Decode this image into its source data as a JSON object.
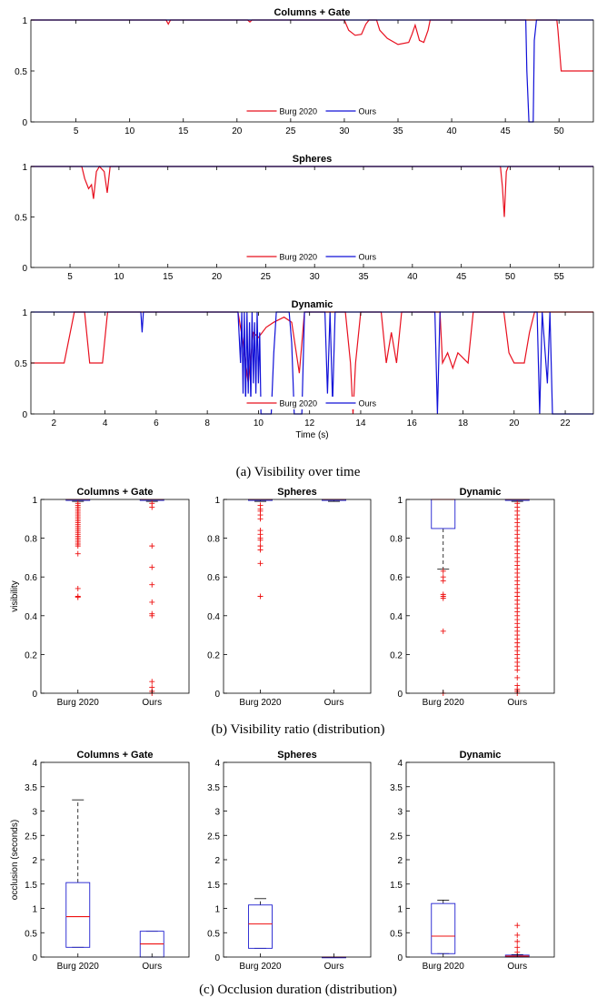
{
  "colors": {
    "burg": "#e8101f",
    "ours": "#1010d8",
    "box": "#1f1fd0",
    "median": "#ee1111",
    "outlier": "#ee1111",
    "whisker": "#000000"
  },
  "legend": {
    "burg": "Burg 2020",
    "ours": "Ours"
  },
  "captions": {
    "a": "(a) Visibility over time",
    "b": "(b) Visibility ratio (distribution)",
    "c": "(c) Occlusion duration (distribution)"
  },
  "chart_data": [
    {
      "id": "a1",
      "type": "line",
      "title": "Columns + Gate",
      "xlabel": "",
      "ylabel": "",
      "xlim": [
        0.8,
        53.2
      ],
      "ylim": [
        0,
        1
      ],
      "xticks": [
        5,
        10,
        15,
        20,
        25,
        30,
        35,
        40,
        45,
        50
      ],
      "yticks": [
        0,
        0.5,
        1
      ],
      "series": [
        {
          "name": "Burg 2020",
          "color": "#e8101f",
          "points": [
            [
              0.8,
              1
            ],
            [
              13.4,
              1
            ],
            [
              13.6,
              0.96
            ],
            [
              13.8,
              1
            ],
            [
              21,
              1
            ],
            [
              21.2,
              0.98
            ],
            [
              21.4,
              1
            ],
            [
              30,
              1
            ],
            [
              30.4,
              0.9
            ],
            [
              31,
              0.85
            ],
            [
              31.6,
              0.86
            ],
            [
              32,
              0.96
            ],
            [
              32.3,
              1
            ],
            [
              33,
              1
            ],
            [
              33.3,
              0.9
            ],
            [
              34,
              0.82
            ],
            [
              35,
              0.76
            ],
            [
              36,
              0.78
            ],
            [
              36.3,
              0.86
            ],
            [
              36.6,
              0.95
            ],
            [
              37,
              0.8
            ],
            [
              37.4,
              0.78
            ],
            [
              37.8,
              0.9
            ],
            [
              38,
              1
            ],
            [
              49.8,
              1
            ],
            [
              49.9,
              0.9
            ],
            [
              50.2,
              0.5
            ],
            [
              53.2,
              0.5
            ]
          ]
        },
        {
          "name": "Ours",
          "color": "#1010d8",
          "points": [
            [
              0.8,
              1
            ],
            [
              46.9,
              1
            ],
            [
              47,
              0.5
            ],
            [
              47.2,
              0
            ],
            [
              47.6,
              0
            ],
            [
              47.7,
              0.8
            ],
            [
              47.9,
              1
            ],
            [
              53.2,
              1
            ]
          ]
        }
      ]
    },
    {
      "id": "a2",
      "type": "line",
      "title": "Spheres",
      "xlabel": "",
      "ylabel": "",
      "xlim": [
        1,
        58.5
      ],
      "ylim": [
        0,
        1
      ],
      "xticks": [
        5,
        10,
        15,
        20,
        25,
        30,
        35,
        40,
        45,
        50,
        55
      ],
      "yticks": [
        0,
        0.5,
        1
      ],
      "series": [
        {
          "name": "Burg 2020",
          "color": "#e8101f",
          "points": [
            [
              1,
              1
            ],
            [
              6.2,
              1
            ],
            [
              6.5,
              0.88
            ],
            [
              6.9,
              0.78
            ],
            [
              7.2,
              0.82
            ],
            [
              7.4,
              0.68
            ],
            [
              7.7,
              0.95
            ],
            [
              8,
              1
            ],
            [
              8.5,
              0.95
            ],
            [
              8.8,
              0.74
            ],
            [
              9.1,
              1
            ],
            [
              49,
              1
            ],
            [
              49.2,
              0.8
            ],
            [
              49.4,
              0.5
            ],
            [
              49.6,
              0.95
            ],
            [
              49.8,
              1
            ],
            [
              58.5,
              1
            ]
          ]
        },
        {
          "name": "Ours",
          "color": "#1010d8",
          "points": [
            [
              1,
              1
            ],
            [
              58.5,
              1
            ]
          ]
        }
      ]
    },
    {
      "id": "a3",
      "type": "line",
      "title": "Dynamic",
      "xlabel": "Time (s)",
      "ylabel": "",
      "xlim": [
        1.1,
        23.1
      ],
      "ylim": [
        0,
        1
      ],
      "xticks": [
        2,
        4,
        6,
        8,
        10,
        12,
        14,
        16,
        18,
        20,
        22
      ],
      "yticks": [
        0,
        0.5,
        1
      ],
      "series": [
        {
          "name": "Burg 2020",
          "color": "#e8101f",
          "points": [
            [
              1.1,
              0.5
            ],
            [
              2.4,
              0.5
            ],
            [
              2.6,
              0.75
            ],
            [
              2.8,
              1
            ],
            [
              3.2,
              1
            ],
            [
              3.4,
              0.5
            ],
            [
              3.9,
              0.5
            ],
            [
              4.1,
              1
            ],
            [
              9.2,
              1
            ],
            [
              9.4,
              0.7
            ],
            [
              9.6,
              0.3
            ],
            [
              9.8,
              0.8
            ],
            [
              10,
              0.75
            ],
            [
              10.3,
              0.85
            ],
            [
              10.6,
              0.9
            ],
            [
              11,
              0.95
            ],
            [
              11.3,
              0.9
            ],
            [
              11.6,
              0.4
            ],
            [
              11.8,
              1
            ],
            [
              13.4,
              1
            ],
            [
              13.6,
              0.5
            ],
            [
              13.7,
              0
            ],
            [
              13.8,
              0.5
            ],
            [
              14,
              1
            ],
            [
              14.8,
              1
            ],
            [
              15,
              0.5
            ],
            [
              15.2,
              0.8
            ],
            [
              15.4,
              0.5
            ],
            [
              15.6,
              1
            ],
            [
              17.1,
              1
            ],
            [
              17.2,
              0.5
            ],
            [
              17.4,
              0.6
            ],
            [
              17.6,
              0.45
            ],
            [
              17.8,
              0.6
            ],
            [
              18,
              0.55
            ],
            [
              18.2,
              0.5
            ],
            [
              18.4,
              1
            ],
            [
              19.6,
              1
            ],
            [
              19.8,
              0.6
            ],
            [
              20,
              0.5
            ],
            [
              20.4,
              0.5
            ],
            [
              20.6,
              0.8
            ],
            [
              20.8,
              1
            ],
            [
              23.1,
              1
            ]
          ]
        },
        {
          "name": "Ours",
          "color": "#1010d8",
          "points": [
            [
              1.1,
              1
            ],
            [
              5.4,
              1
            ],
            [
              5.45,
              0.8
            ],
            [
              5.5,
              1
            ],
            [
              9.2,
              1
            ],
            [
              9.3,
              0.5
            ],
            [
              9.35,
              1
            ],
            [
              9.4,
              0.2
            ],
            [
              9.45,
              1
            ],
            [
              9.5,
              0.1
            ],
            [
              9.55,
              1
            ],
            [
              9.6,
              0.2
            ],
            [
              9.65,
              0.9
            ],
            [
              9.7,
              0.1
            ],
            [
              9.75,
              1
            ],
            [
              9.8,
              0.3
            ],
            [
              9.85,
              0.9
            ],
            [
              9.9,
              0.2
            ],
            [
              9.95,
              1
            ],
            [
              10,
              0.3
            ],
            [
              10.05,
              0.8
            ],
            [
              10.1,
              0
            ],
            [
              10.5,
              0
            ],
            [
              10.6,
              0.6
            ],
            [
              10.7,
              1
            ],
            [
              11.2,
              1
            ],
            [
              11.3,
              0.7
            ],
            [
              11.4,
              0
            ],
            [
              11.7,
              0
            ],
            [
              11.8,
              1
            ],
            [
              12.6,
              1
            ],
            [
              12.7,
              0.2
            ],
            [
              12.8,
              1
            ],
            [
              12.9,
              0.1
            ],
            [
              13,
              1
            ],
            [
              16.9,
              1
            ],
            [
              17,
              0
            ],
            [
              17.1,
              1
            ],
            [
              20.9,
              1
            ],
            [
              21,
              0
            ],
            [
              21.1,
              1
            ],
            [
              21.3,
              0.3
            ],
            [
              21.4,
              1
            ],
            [
              21.5,
              0
            ],
            [
              23.1,
              0
            ]
          ]
        }
      ]
    },
    {
      "id": "b1",
      "type": "box",
      "title": "Columns + Gate",
      "ylabel": "visibility",
      "categories": [
        "Burg 2020",
        "Ours"
      ],
      "ylim": [
        0,
        1
      ],
      "yticks": [
        0,
        0.2,
        0.4,
        0.6,
        0.8,
        1
      ],
      "boxes": [
        {
          "q1": 0.995,
          "median": 1,
          "q3": 1,
          "lw": 0.99,
          "uw": 1,
          "outliers": [
            0.98,
            0.97,
            0.96,
            0.95,
            0.94,
            0.93,
            0.92,
            0.91,
            0.9,
            0.89,
            0.88,
            0.87,
            0.86,
            0.85,
            0.84,
            0.83,
            0.82,
            0.81,
            0.8,
            0.79,
            0.78,
            0.77,
            0.76,
            0.72,
            0.54,
            0.5,
            0.495
          ]
        },
        {
          "q1": 0.995,
          "median": 1,
          "q3": 1,
          "lw": 0.99,
          "uw": 1,
          "outliers": [
            0.98,
            0.96,
            0.76,
            0.65,
            0.56,
            0.47,
            0.41,
            0.4,
            0.06,
            0.03,
            0.01,
            0.0
          ]
        }
      ]
    },
    {
      "id": "b2",
      "type": "box",
      "title": "Spheres",
      "ylabel": "",
      "categories": [
        "Burg 2020",
        "Ours"
      ],
      "ylim": [
        0,
        1
      ],
      "yticks": [
        0,
        0.2,
        0.4,
        0.6,
        0.8,
        1
      ],
      "boxes": [
        {
          "q1": 0.995,
          "median": 1,
          "q3": 1,
          "lw": 0.99,
          "uw": 1,
          "outliers": [
            0.97,
            0.95,
            0.94,
            0.92,
            0.9,
            0.84,
            0.82,
            0.8,
            0.79,
            0.76,
            0.74,
            0.67,
            0.5
          ]
        },
        {
          "q1": 0.995,
          "median": 1,
          "q3": 1,
          "lw": 0.99,
          "uw": 1,
          "outliers": []
        }
      ]
    },
    {
      "id": "b3",
      "type": "box",
      "title": "Dynamic",
      "ylabel": "",
      "categories": [
        "Burg 2020",
        "Ours"
      ],
      "ylim": [
        0,
        1
      ],
      "yticks": [
        0,
        0.2,
        0.4,
        0.6,
        0.8,
        1
      ],
      "boxes": [
        {
          "q1": 0.85,
          "median": 1,
          "q3": 1,
          "lw": 0.64,
          "uw": 1,
          "outliers": [
            0.63,
            0.6,
            0.58,
            0.51,
            0.5,
            0.49,
            0.32,
            0.0
          ]
        },
        {
          "q1": 0.995,
          "median": 1,
          "q3": 1,
          "lw": 0.99,
          "uw": 1,
          "outliers": [
            0.98,
            0.96,
            0.94,
            0.92,
            0.9,
            0.88,
            0.86,
            0.84,
            0.82,
            0.8,
            0.78,
            0.76,
            0.74,
            0.72,
            0.7,
            0.68,
            0.66,
            0.64,
            0.62,
            0.6,
            0.58,
            0.56,
            0.54,
            0.52,
            0.5,
            0.48,
            0.46,
            0.44,
            0.42,
            0.4,
            0.38,
            0.36,
            0.34,
            0.32,
            0.3,
            0.28,
            0.26,
            0.24,
            0.22,
            0.2,
            0.18,
            0.16,
            0.14,
            0.12,
            0.08,
            0.04,
            0.02,
            0.01,
            0.0
          ]
        }
      ]
    },
    {
      "id": "c1",
      "type": "box",
      "title": "Columns + Gate",
      "ylabel": "occlusion (seconds)",
      "categories": [
        "Burg 2020",
        "Ours"
      ],
      "ylim": [
        0,
        4
      ],
      "yticks": [
        0,
        0.5,
        1,
        1.5,
        2,
        2.5,
        3,
        3.5,
        4
      ],
      "boxes": [
        {
          "q1": 0.2,
          "median": 0.83,
          "q3": 1.53,
          "lw": 0.2,
          "uw": 3.23,
          "outliers": []
        },
        {
          "q1": 0.0,
          "median": 0.27,
          "q3": 0.53,
          "lw": 0.0,
          "uw": 0.53,
          "outliers": []
        }
      ]
    },
    {
      "id": "c2",
      "type": "box",
      "title": "Spheres",
      "ylabel": "",
      "categories": [
        "Burg 2020",
        "Ours"
      ],
      "ylim": [
        0,
        4
      ],
      "yticks": [
        0,
        0.5,
        1,
        1.5,
        2,
        2.5,
        3,
        3.5,
        4
      ],
      "boxes": [
        {
          "q1": 0.18,
          "median": 0.68,
          "q3": 1.07,
          "lw": 0.18,
          "uw": 1.2,
          "outliers": []
        },
        {
          "q1": 0.0,
          "median": 0.0,
          "q3": 0.0,
          "lw": 0.0,
          "uw": 0.0,
          "outliers": []
        }
      ]
    },
    {
      "id": "c3",
      "type": "box",
      "title": "Dynamic",
      "ylabel": "",
      "categories": [
        "Burg 2020",
        "Ours"
      ],
      "ylim": [
        0,
        4
      ],
      "yticks": [
        0,
        0.5,
        1,
        1.5,
        2,
        2.5,
        3,
        3.5,
        4
      ],
      "boxes": [
        {
          "q1": 0.07,
          "median": 0.43,
          "q3": 1.1,
          "lw": 0.07,
          "uw": 1.17,
          "outliers": []
        },
        {
          "q1": 0.0,
          "median": 0.02,
          "q3": 0.04,
          "lw": 0.0,
          "uw": 0.05,
          "outliers": [
            0.1,
            0.2,
            0.32,
            0.45,
            0.65
          ]
        }
      ]
    }
  ]
}
